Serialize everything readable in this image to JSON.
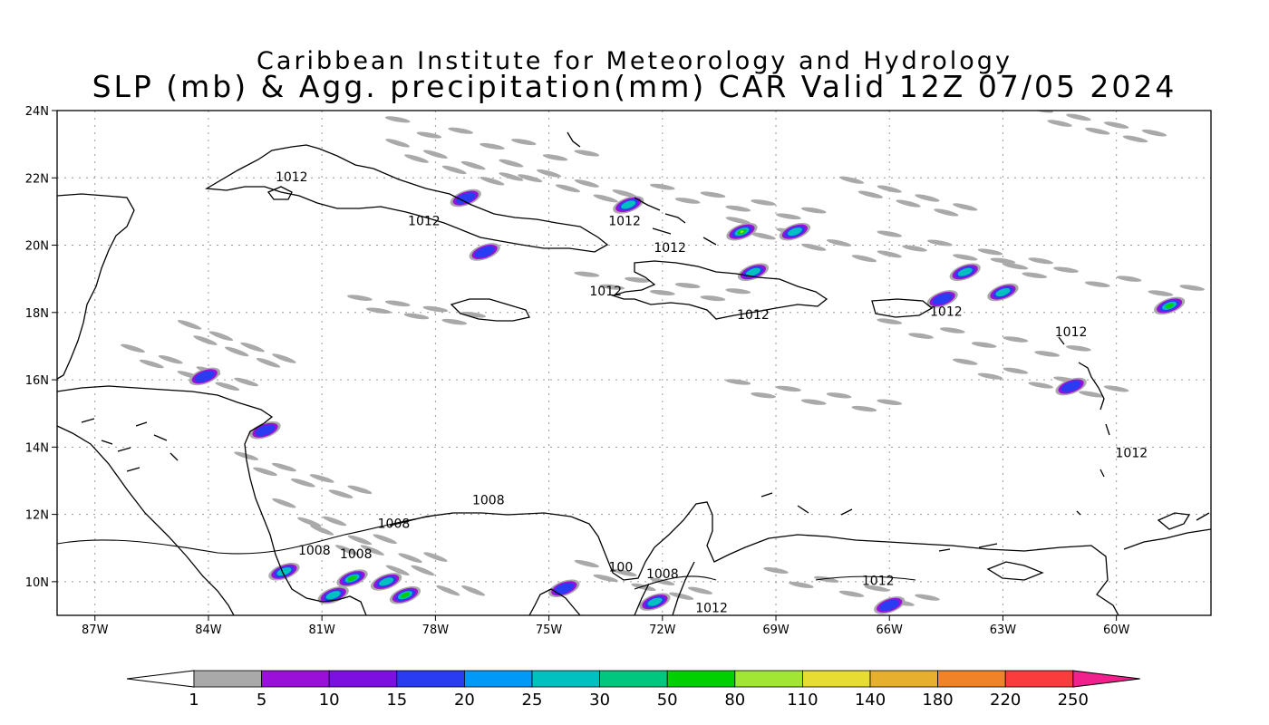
{
  "title": {
    "line1": "Caribbean Institute for Meteorology and Hydrology",
    "line2": "SLP (mb) & Agg. precipitation(mm) CAR Valid 12Z 07/05 2024"
  },
  "map": {
    "lon_range": [
      -88,
      -57.5
    ],
    "lat_range": [
      9,
      24
    ],
    "lon_ticks": [
      {
        "value": -87,
        "label": "87W"
      },
      {
        "value": -84,
        "label": "84W"
      },
      {
        "value": -81,
        "label": "81W"
      },
      {
        "value": -78,
        "label": "78W"
      },
      {
        "value": -75,
        "label": "75W"
      },
      {
        "value": -72,
        "label": "72W"
      },
      {
        "value": -69,
        "label": "69W"
      },
      {
        "value": -66,
        "label": "66W"
      },
      {
        "value": -63,
        "label": "63W"
      },
      {
        "value": -60,
        "label": "60W"
      }
    ],
    "lat_ticks": [
      {
        "value": 24,
        "label": "24N"
      },
      {
        "value": 22,
        "label": "22N"
      },
      {
        "value": 20,
        "label": "20N"
      },
      {
        "value": 18,
        "label": "18N"
      },
      {
        "value": 16,
        "label": "16N"
      },
      {
        "value": 14,
        "label": "14N"
      },
      {
        "value": 12,
        "label": "12N"
      },
      {
        "value": 10,
        "label": "10N"
      }
    ],
    "grid": true,
    "isobar_labels": [
      {
        "text": "1012",
        "lon": -81.8,
        "lat": 21.9
      },
      {
        "text": "1012",
        "lon": -78.3,
        "lat": 20.6
      },
      {
        "text": "1012",
        "lon": -73.0,
        "lat": 20.6
      },
      {
        "text": "1012",
        "lon": -71.8,
        "lat": 19.8
      },
      {
        "text": "1012",
        "lon": -73.5,
        "lat": 18.5
      },
      {
        "text": "1012",
        "lon": -69.6,
        "lat": 17.8
      },
      {
        "text": "1012",
        "lon": -64.5,
        "lat": 17.9
      },
      {
        "text": "1012",
        "lon": -61.2,
        "lat": 17.3
      },
      {
        "text": "1012",
        "lon": -59.6,
        "lat": 13.7
      },
      {
        "text": "1008",
        "lon": -76.6,
        "lat": 12.3
      },
      {
        "text": "1008",
        "lon": -79.1,
        "lat": 11.6
      },
      {
        "text": "1008",
        "lon": -81.2,
        "lat": 10.8
      },
      {
        "text": "1008",
        "lon": -80.1,
        "lat": 10.7
      },
      {
        "text": "100",
        "lon": -73.1,
        "lat": 10.3
      },
      {
        "text": "1008",
        "lon": -72.0,
        "lat": 10.1
      },
      {
        "text": "1012",
        "lon": -66.3,
        "lat": 9.9
      },
      {
        "text": "1012",
        "lon": -70.7,
        "lat": 9.1
      }
    ],
    "precip_blobs": [
      {
        "lon": -82.0,
        "lat": 10.3,
        "level": 3
      },
      {
        "lon": -80.2,
        "lat": 10.1,
        "level": 4
      },
      {
        "lon": -79.3,
        "lat": 10.0,
        "level": 3
      },
      {
        "lon": -78.8,
        "lat": 9.6,
        "level": 4
      },
      {
        "lon": -80.7,
        "lat": 9.6,
        "level": 3
      },
      {
        "lon": -69.9,
        "lat": 20.4,
        "level": 5
      },
      {
        "lon": -68.5,
        "lat": 20.4,
        "level": 3
      },
      {
        "lon": -72.9,
        "lat": 21.2,
        "level": 3
      },
      {
        "lon": -69.6,
        "lat": 19.2,
        "level": 3
      },
      {
        "lon": -63.0,
        "lat": 18.6,
        "level": 3
      },
      {
        "lon": -58.6,
        "lat": 18.2,
        "level": 4
      },
      {
        "lon": -64.0,
        "lat": 19.2,
        "level": 3
      },
      {
        "lon": -61.2,
        "lat": 15.8,
        "level": 2
      },
      {
        "lon": -74.6,
        "lat": 9.8,
        "level": 2
      },
      {
        "lon": -72.2,
        "lat": 9.4,
        "level": 3
      },
      {
        "lon": -66.0,
        "lat": 9.3,
        "level": 2
      },
      {
        "lon": -84.1,
        "lat": 16.1,
        "level": 2
      },
      {
        "lon": -77.2,
        "lat": 21.4,
        "level": 2
      },
      {
        "lon": -76.7,
        "lat": 19.8,
        "level": 2
      },
      {
        "lon": -82.5,
        "lat": 14.5,
        "level": 2
      },
      {
        "lon": -64.6,
        "lat": 18.4,
        "level": 2
      }
    ],
    "gray_streaks": [
      [
        -79,
        22.9,
        -76,
        21.9
      ],
      [
        -76,
        22.3,
        -73,
        21.4
      ],
      [
        -72,
        21.6,
        -68,
        20.9
      ],
      [
        -70,
        20.6,
        -66,
        19.6
      ],
      [
        -66,
        20.2,
        -62,
        19.4
      ],
      [
        -63,
        19.4,
        -58,
        18.6
      ],
      [
        -66,
        17.6,
        -61,
        16.8
      ],
      [
        -64,
        16.4,
        -60,
        15.6
      ],
      [
        -86,
        16.8,
        -83,
        15.8
      ],
      [
        -83,
        13.6,
        -80,
        12.6
      ],
      [
        -82,
        12.2,
        -78,
        10.6
      ],
      [
        -81,
        11.4,
        -77,
        9.6
      ],
      [
        -74,
        10.4,
        -71,
        9.6
      ],
      [
        -69,
        10.2,
        -65,
        9.4
      ],
      [
        -79,
        23.6,
        -74,
        22.6
      ],
      [
        -62,
        23.9,
        -59,
        23.2
      ],
      [
        -74,
        19.0,
        -70,
        18.5
      ],
      [
        -84.5,
        17.5,
        -82,
        16.5
      ],
      [
        -67,
        21.8,
        -64,
        21.0
      ],
      [
        -80,
        18.3,
        -77,
        17.8
      ],
      [
        -70,
        15.8,
        -66,
        15.2
      ]
    ]
  },
  "colorbar": {
    "labels": [
      "1",
      "5",
      "10",
      "15",
      "20",
      "25",
      "30",
      "50",
      "80",
      "110",
      "140",
      "180",
      "220",
      "250"
    ],
    "colors": [
      "#ffffff",
      "#a9a9a9",
      "#9a10d8",
      "#7d10e0",
      "#2a3cf2",
      "#0099f7",
      "#00c0c0",
      "#00c77f",
      "#00d000",
      "#a0e632",
      "#e6dc32",
      "#e6af2d",
      "#f08228",
      "#fa3c3c",
      "#f0208c"
    ]
  }
}
